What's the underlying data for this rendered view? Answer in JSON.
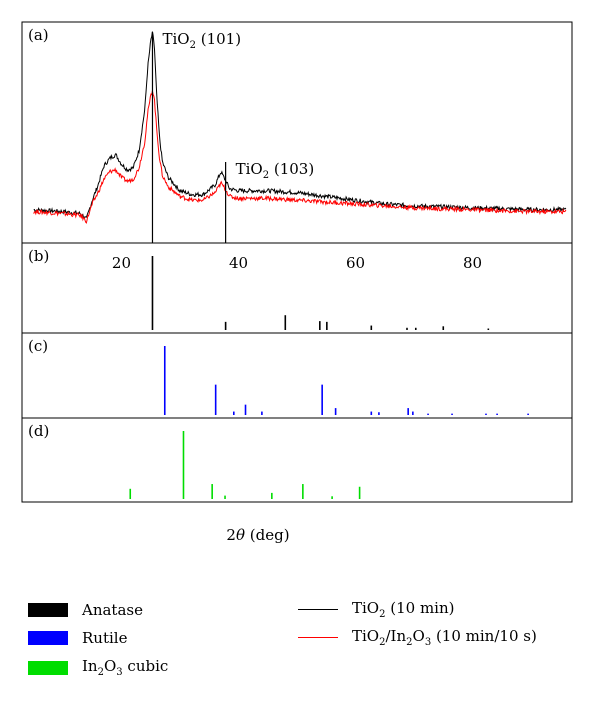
{
  "chart_data": {
    "type": "line",
    "xlabel": "2θ (deg)",
    "xlim": [
      3,
      97
    ],
    "x_ticks": [
      20,
      40,
      60,
      80
    ],
    "panels": [
      {
        "label": "(a)",
        "kind": "xrd_pattern",
        "series": [
          {
            "name": "TiO2 (10 min)",
            "color": "#000000",
            "points": [
              [
                5,
                0.07
              ],
              [
                10,
                0.06
              ],
              [
                13,
                0.05
              ],
              [
                14,
                0.02
              ],
              [
                15,
                0.12
              ],
              [
                16,
                0.2
              ],
              [
                17,
                0.3
              ],
              [
                18,
                0.34
              ],
              [
                19,
                0.36
              ],
              [
                20,
                0.31
              ],
              [
                21,
                0.28
              ],
              [
                22,
                0.29
              ],
              [
                23,
                0.38
              ],
              [
                24,
                0.6
              ],
              [
                24.5,
                0.82
              ],
              [
                25.0,
                0.96
              ],
              [
                25.3,
                1.0
              ],
              [
                25.6,
                0.94
              ],
              [
                26.0,
                0.68
              ],
              [
                26.5,
                0.45
              ],
              [
                27,
                0.32
              ],
              [
                28,
                0.24
              ],
              [
                30,
                0.17
              ],
              [
                32,
                0.15
              ],
              [
                34,
                0.15
              ],
              [
                36,
                0.2
              ],
              [
                37,
                0.27
              ],
              [
                37.5,
                0.24
              ],
              [
                38.5,
                0.18
              ],
              [
                40,
                0.17
              ],
              [
                45,
                0.17
              ],
              [
                50,
                0.16
              ],
              [
                55,
                0.14
              ],
              [
                60,
                0.12
              ],
              [
                65,
                0.1
              ],
              [
                70,
                0.09
              ],
              [
                80,
                0.08
              ],
              [
                90,
                0.07
              ],
              [
                96,
                0.07
              ]
            ]
          },
          {
            "name": "TiO2/In2O3 (10 min/10 s)",
            "color": "#ff0000",
            "points": [
              [
                5,
                0.06
              ],
              [
                10,
                0.05
              ],
              [
                13,
                0.04
              ],
              [
                14,
                0.01
              ],
              [
                15,
                0.1
              ],
              [
                16,
                0.16
              ],
              [
                17,
                0.23
              ],
              [
                18,
                0.27
              ],
              [
                19,
                0.28
              ],
              [
                20,
                0.24
              ],
              [
                21,
                0.22
              ],
              [
                22,
                0.23
              ],
              [
                23,
                0.29
              ],
              [
                24,
                0.43
              ],
              [
                24.5,
                0.58
              ],
              [
                25.0,
                0.67
              ],
              [
                25.3,
                0.7
              ],
              [
                25.6,
                0.66
              ],
              [
                26.0,
                0.5
              ],
              [
                26.5,
                0.34
              ],
              [
                27,
                0.25
              ],
              [
                28,
                0.19
              ],
              [
                30,
                0.14
              ],
              [
                32,
                0.12
              ],
              [
                34,
                0.12
              ],
              [
                36,
                0.16
              ],
              [
                37,
                0.21
              ],
              [
                37.5,
                0.19
              ],
              [
                38.5,
                0.14
              ],
              [
                40,
                0.13
              ],
              [
                45,
                0.13
              ],
              [
                50,
                0.12
              ],
              [
                55,
                0.11
              ],
              [
                60,
                0.1
              ],
              [
                65,
                0.09
              ],
              [
                70,
                0.08
              ],
              [
                80,
                0.07
              ],
              [
                90,
                0.06
              ],
              [
                96,
                0.06
              ]
            ]
          }
        ],
        "annotations": [
          {
            "text": "TiO",
            "sub": "2",
            "suffix": " (101)",
            "x": 25.3
          },
          {
            "text": "TiO",
            "sub": "2",
            "suffix": " (103)",
            "x": 37.8
          }
        ]
      },
      {
        "label": "(b)",
        "kind": "stick",
        "color": "#000000",
        "sticks": [
          [
            25.3,
            1.0
          ],
          [
            37.8,
            0.11
          ],
          [
            48.0,
            0.2
          ],
          [
            53.9,
            0.12
          ],
          [
            55.1,
            0.11
          ],
          [
            62.7,
            0.06
          ],
          [
            68.8,
            0.03
          ],
          [
            70.3,
            0.03
          ],
          [
            75.0,
            0.05
          ],
          [
            82.7,
            0.02
          ]
        ]
      },
      {
        "label": "(c)",
        "kind": "stick",
        "color": "#0000ff",
        "sticks": [
          [
            27.4,
            1.0
          ],
          [
            36.1,
            0.44
          ],
          [
            39.2,
            0.05
          ],
          [
            41.2,
            0.15
          ],
          [
            44.0,
            0.05
          ],
          [
            54.3,
            0.44
          ],
          [
            56.6,
            0.1
          ],
          [
            62.7,
            0.05
          ],
          [
            64.0,
            0.04
          ],
          [
            69.0,
            0.1
          ],
          [
            69.8,
            0.05
          ],
          [
            72.4,
            0.02
          ],
          [
            76.5,
            0.02
          ],
          [
            82.3,
            0.02
          ],
          [
            84.2,
            0.02
          ],
          [
            89.5,
            0.02
          ]
        ]
      },
      {
        "label": "(d)",
        "kind": "stick",
        "color": "#00dd00",
        "sticks": [
          [
            21.5,
            0.15
          ],
          [
            30.6,
            1.0
          ],
          [
            35.5,
            0.22
          ],
          [
            37.7,
            0.05
          ],
          [
            45.7,
            0.09
          ],
          [
            51.0,
            0.22
          ],
          [
            56.0,
            0.04
          ],
          [
            60.7,
            0.18
          ]
        ]
      }
    ],
    "legend": {
      "references": [
        {
          "name": "Anatase",
          "color": "#000000"
        },
        {
          "name": "Rutile",
          "color": "#0000ff"
        },
        {
          "name_parts": [
            "In",
            "2",
            "O",
            "3",
            " cubic"
          ],
          "color": "#00dd00"
        }
      ],
      "lines": [
        {
          "name_parts": [
            "TiO",
            "2",
            " (10 min)"
          ],
          "color": "#000000"
        },
        {
          "name_parts": [
            "TiO",
            "2",
            "/In",
            "2",
            "O",
            "3",
            " (10 min/10 s)"
          ],
          "color": "#ff0000"
        }
      ]
    }
  }
}
